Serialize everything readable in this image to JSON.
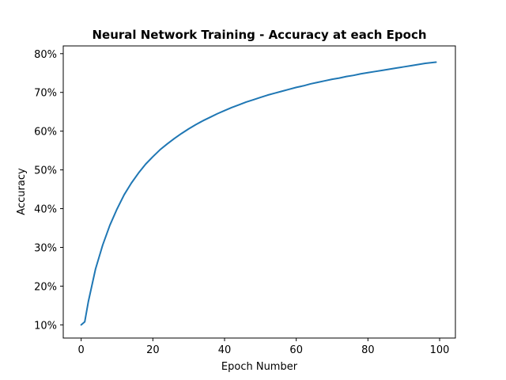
{
  "chart_data": {
    "type": "line",
    "title": "Neural Network Training - Accuracy at each Epoch",
    "xlabel": "Epoch Number",
    "ylabel": "Accuracy",
    "xlim": [
      -5,
      104.4
    ],
    "ylim": [
      0.066,
      0.82
    ],
    "grid": false,
    "legend": "none",
    "x_ticks": [
      0,
      20,
      40,
      60,
      80,
      100
    ],
    "x_tick_labels": [
      "0",
      "20",
      "40",
      "60",
      "80",
      "100"
    ],
    "y_ticks": [
      0.1,
      0.2,
      0.3,
      0.4,
      0.5,
      0.6,
      0.7,
      0.8
    ],
    "y_tick_labels": [
      "10%",
      "20%",
      "30%",
      "40%",
      "50%",
      "60%",
      "70%",
      "80%"
    ],
    "series": [
      {
        "color": "#1f77b4",
        "x": [
          0,
          1,
          2,
          4,
          6,
          8,
          10,
          12,
          14,
          16,
          18,
          20,
          22,
          24,
          26,
          28,
          30,
          32,
          34,
          36,
          38,
          40,
          42,
          44,
          46,
          48,
          50,
          52,
          54,
          56,
          58,
          60,
          62,
          64,
          66,
          68,
          70,
          72,
          74,
          76,
          78,
          80,
          82,
          84,
          86,
          88,
          90,
          92,
          94,
          96,
          98,
          99
        ],
        "y": [
          0.1,
          0.108,
          0.16,
          0.244,
          0.306,
          0.357,
          0.399,
          0.436,
          0.466,
          0.492,
          0.515,
          0.534,
          0.552,
          0.567,
          0.581,
          0.594,
          0.606,
          0.617,
          0.627,
          0.636,
          0.645,
          0.653,
          0.661,
          0.668,
          0.675,
          0.681,
          0.687,
          0.693,
          0.698,
          0.703,
          0.708,
          0.713,
          0.717,
          0.722,
          0.726,
          0.73,
          0.734,
          0.737,
          0.741,
          0.744,
          0.748,
          0.751,
          0.754,
          0.757,
          0.76,
          0.763,
          0.766,
          0.769,
          0.772,
          0.775,
          0.777,
          0.778
        ]
      }
    ]
  }
}
